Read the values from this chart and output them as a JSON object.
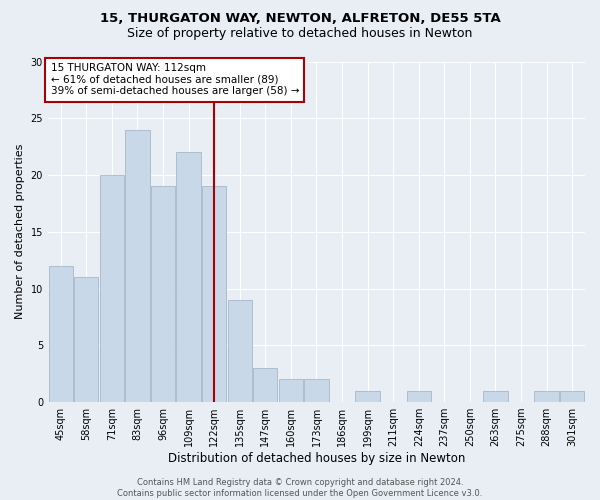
{
  "title1": "15, THURGATON WAY, NEWTON, ALFRETON, DE55 5TA",
  "title2": "Size of property relative to detached houses in Newton",
  "xlabel": "Distribution of detached houses by size in Newton",
  "ylabel": "Number of detached properties",
  "categories": [
    "45sqm",
    "58sqm",
    "71sqm",
    "83sqm",
    "96sqm",
    "109sqm",
    "122sqm",
    "135sqm",
    "147sqm",
    "160sqm",
    "173sqm",
    "186sqm",
    "199sqm",
    "211sqm",
    "224sqm",
    "237sqm",
    "250sqm",
    "263sqm",
    "275sqm",
    "288sqm",
    "301sqm"
  ],
  "values": [
    12,
    11,
    20,
    24,
    19,
    22,
    19,
    9,
    3,
    2,
    2,
    0,
    1,
    0,
    1,
    0,
    0,
    1,
    0,
    1,
    1
  ],
  "bar_color": "#c8d8e8",
  "bar_edge_color": "#a8b8c8",
  "vline_x": 6,
  "vline_color": "#aa0000",
  "annotation_text": "15 THURGATON WAY: 112sqm\n← 61% of detached houses are smaller (89)\n39% of semi-detached houses are larger (58) →",
  "annotation_box_color": "#ffffff",
  "annotation_box_edge_color": "#aa0000",
  "footer_text": "Contains HM Land Registry data © Crown copyright and database right 2024.\nContains public sector information licensed under the Open Government Licence v3.0.",
  "ylim": [
    0,
    30
  ],
  "yticks": [
    0,
    5,
    10,
    15,
    20,
    25,
    30
  ],
  "background_color": "#e8eef4",
  "grid_color": "#ffffff",
  "title_fontsize": 9.5,
  "subtitle_fontsize": 9,
  "tick_fontsize": 7,
  "ylabel_fontsize": 8,
  "xlabel_fontsize": 8.5,
  "annotation_fontsize": 7.5,
  "footer_fontsize": 6
}
